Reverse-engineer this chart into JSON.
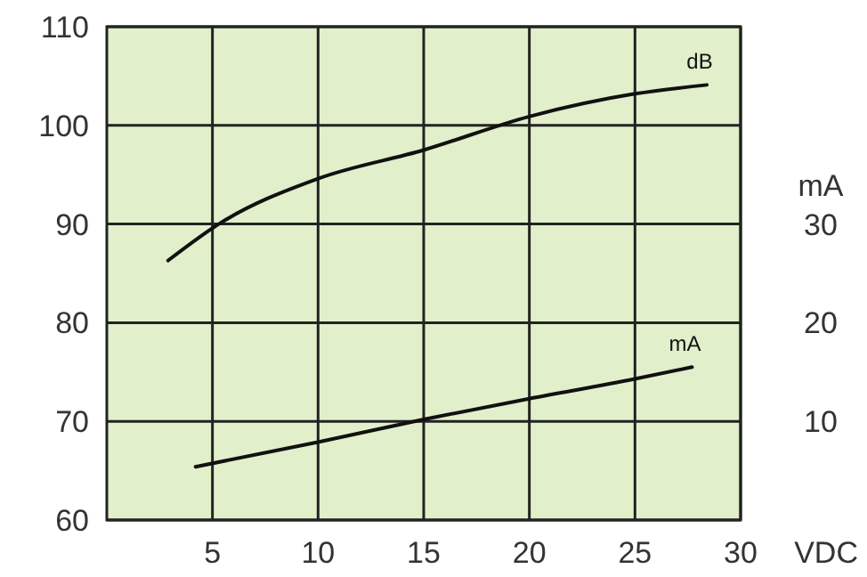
{
  "chart_data": {
    "type": "line",
    "xlabel": "VDC",
    "y2label": "mA",
    "xlim": [
      0,
      30
    ],
    "xticks": [
      5,
      10,
      15,
      20,
      25,
      30
    ],
    "ylim": [
      60,
      110
    ],
    "yticks": [
      60,
      70,
      80,
      90,
      100,
      110
    ],
    "y2lim": [
      0,
      50
    ],
    "y2ticks": [
      10,
      20,
      30
    ],
    "grid": true,
    "marker": "none",
    "line_style": "solid",
    "series": [
      {
        "name": "dB",
        "color": "#111111",
        "x": [
          2.9,
          5.3,
          10,
          15,
          20,
          25,
          28.4
        ],
        "values": [
          86.3,
          90,
          94.6,
          97.5,
          100.9,
          103.2,
          104.1
        ]
      },
      {
        "name": "mA",
        "color": "#111111",
        "axis": "y2",
        "x": [
          4.2,
          10,
          15,
          20,
          25,
          27.7
        ],
        "values": [
          5.4,
          7.9,
          10.2,
          12.3,
          14.3,
          15.5
        ]
      }
    ]
  }
}
